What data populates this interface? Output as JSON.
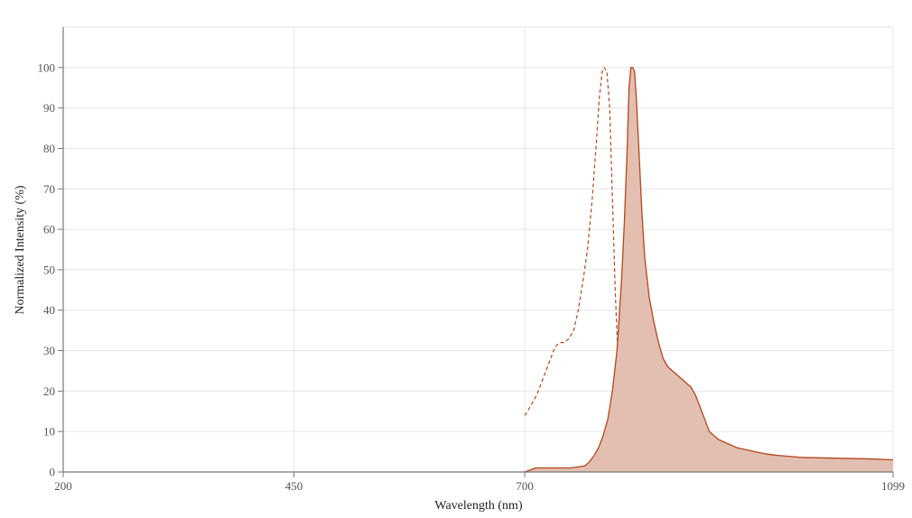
{
  "chart_data": {
    "type": "area",
    "title": "",
    "xlabel": "Wavelength (nm)",
    "ylabel": "Normalized Intensity (%)",
    "xlim": [
      200,
      1099
    ],
    "ylim": [
      0,
      110
    ],
    "x_ticks": [
      200,
      450,
      700,
      1099
    ],
    "x_tick_labels": [
      "200",
      "450",
      "700",
      "1099"
    ],
    "y_ticks": [
      0,
      10,
      20,
      30,
      40,
      50,
      60,
      70,
      80,
      90,
      100
    ],
    "y_tick_labels": [
      "0",
      "10",
      "20",
      "30",
      "40",
      "50",
      "60",
      "70",
      "80",
      "90",
      "100"
    ],
    "grid": true,
    "legend": "none",
    "colors": {
      "line": "#b5461c",
      "fill": "#e2bfb0",
      "grid": "#e6e6e6",
      "axis": "#777777"
    },
    "series": [
      {
        "style": "dashed",
        "x": [
          700,
          703,
          708,
          713,
          718,
          723,
          728,
          733,
          738,
          743,
          748,
          753,
          758,
          763,
          768,
          773,
          778,
          781,
          784,
          786,
          789,
          792,
          795,
          798,
          801,
          804,
          807,
          810,
          815,
          820,
          825,
          830,
          835,
          850
        ],
        "y": [
          14,
          15,
          17,
          19,
          22,
          25,
          28,
          31,
          32,
          32,
          33,
          35,
          40,
          47,
          55,
          67,
          83,
          93,
          99,
          100,
          99,
          90,
          68,
          45,
          28,
          16,
          9,
          5,
          2,
          1,
          0.5,
          0.3,
          0.2,
          0.1
        ]
      },
      {
        "style": "solid-filled",
        "x": [
          700,
          712,
          730,
          750,
          765,
          770,
          775,
          780,
          785,
          790,
          795,
          800,
          805,
          808,
          811,
          813,
          815,
          817,
          819,
          821,
          824,
          827,
          830,
          835,
          840,
          845,
          850,
          855,
          860,
          865,
          870,
          875,
          880,
          885,
          890,
          895,
          900,
          910,
          920,
          930,
          940,
          950,
          960,
          970,
          980,
          990,
          1000,
          1020,
          1040,
          1060,
          1080,
          1099
        ],
        "y": [
          0,
          1,
          1,
          1,
          1.5,
          2.5,
          4,
          6,
          9,
          13,
          20,
          30,
          48,
          62,
          80,
          95,
          100,
          100,
          99,
          92,
          78,
          64,
          53,
          43,
          37,
          32,
          28,
          26,
          25,
          24,
          23,
          22,
          21,
          19,
          16,
          13,
          10,
          8,
          7,
          6,
          5.5,
          5,
          4.5,
          4.2,
          4,
          3.8,
          3.6,
          3.5,
          3.4,
          3.3,
          3.2,
          3
        ]
      }
    ]
  }
}
